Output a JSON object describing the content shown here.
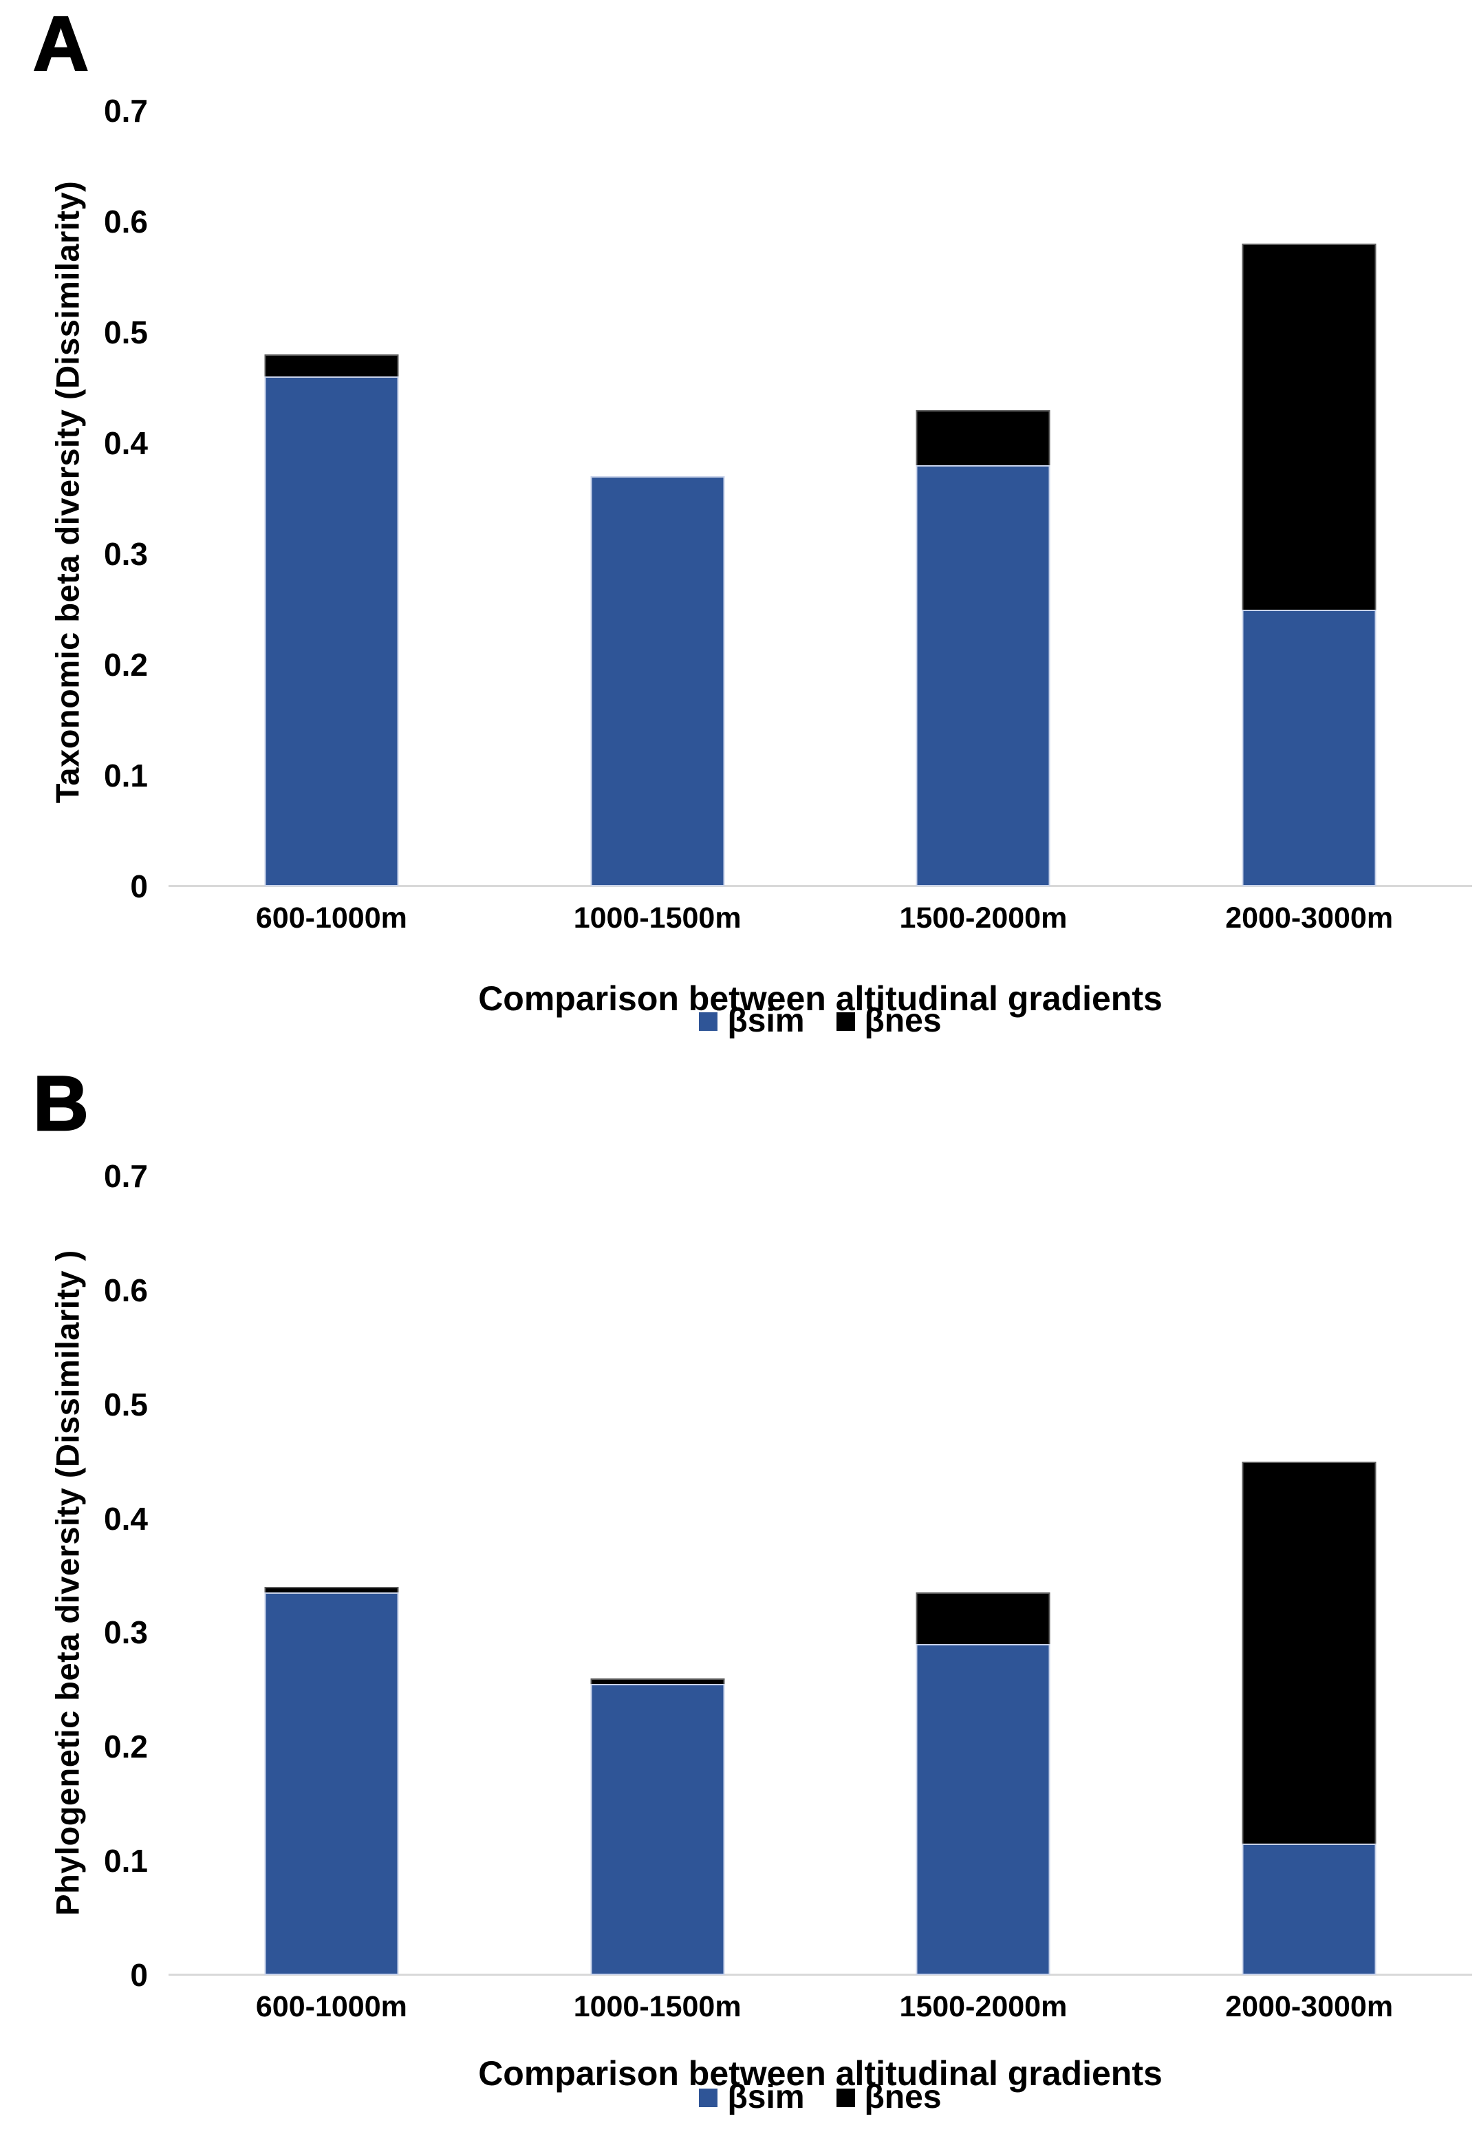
{
  "chart_data": [
    {
      "panel_label": "A",
      "type": "bar",
      "stacked": true,
      "title": "",
      "xlabel": "Comparison between altitudinal gradients",
      "ylabel": "Taxonomic beta diversity (Dissimilarity)",
      "categories": [
        "600-1000m",
        "1000-1500m",
        "1500-2000m",
        "2000-3000m"
      ],
      "series": [
        {
          "name": "βsim",
          "color": "#2F5597",
          "values": [
            0.46,
            0.37,
            0.38,
            0.25
          ]
        },
        {
          "name": "βnes",
          "color": "#000000",
          "values": [
            0.02,
            0,
            0.05,
            0.33
          ]
        }
      ],
      "stack_totals": [
        0.48,
        0.37,
        0.43,
        0.58
      ],
      "ylim": [
        0,
        0.7
      ],
      "yticks": [
        {
          "label": "0",
          "value": 0
        },
        {
          "label": "0.1",
          "value": 0.1
        },
        {
          "label": "0.2",
          "value": 0.2
        },
        {
          "label": "0.3",
          "value": 0.3
        },
        {
          "label": "0.4",
          "value": 0.4
        },
        {
          "label": "0.5",
          "value": 0.5
        },
        {
          "label": "0.6",
          "value": 0.6
        },
        {
          "label": "0.7",
          "value": 0.7
        }
      ],
      "grid": false,
      "legend_position": "bottom"
    },
    {
      "panel_label": "B",
      "type": "bar",
      "stacked": true,
      "title": "",
      "xlabel": "Comparison between altitudinal gradients",
      "ylabel": "Phylogenetic beta diversity (Dissimilarity )",
      "categories": [
        "600-1000m",
        "1000-1500m",
        "1500-2000m",
        "2000-3000m"
      ],
      "series": [
        {
          "name": "βsim",
          "color": "#2F5597",
          "values": [
            0.335,
            0.255,
            0.29,
            0.115
          ]
        },
        {
          "name": "βnes",
          "color": "#000000",
          "values": [
            0.005,
            0.005,
            0.045,
            0.335
          ]
        }
      ],
      "stack_totals": [
        0.34,
        0.26,
        0.335,
        0.45
      ],
      "ylim": [
        0,
        0.7
      ],
      "yticks": [
        {
          "label": "0",
          "value": 0
        },
        {
          "label": "0.1",
          "value": 0.1
        },
        {
          "label": "0.2",
          "value": 0.2
        },
        {
          "label": "0.3",
          "value": 0.3
        },
        {
          "label": "0.4",
          "value": 0.4
        },
        {
          "label": "0.5",
          "value": 0.5
        },
        {
          "label": "0.6",
          "value": 0.6
        },
        {
          "label": "0.7",
          "value": 0.7
        }
      ],
      "grid": false,
      "legend_position": "bottom"
    }
  ],
  "colors": {
    "bsim_blue": "#2F5597",
    "bnes_black": "#000000",
    "axis_line_gray": "#D9D9D9"
  }
}
